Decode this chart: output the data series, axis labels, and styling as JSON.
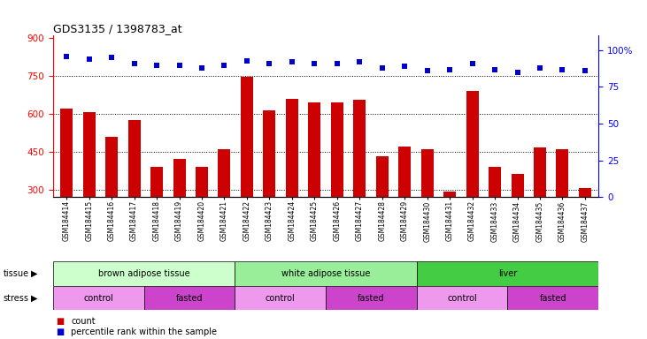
{
  "title": "GDS3135 / 1398783_at",
  "samples": [
    "GSM184414",
    "GSM184415",
    "GSM184416",
    "GSM184417",
    "GSM184418",
    "GSM184419",
    "GSM184420",
    "GSM184421",
    "GSM184422",
    "GSM184423",
    "GSM184424",
    "GSM184425",
    "GSM184426",
    "GSM184427",
    "GSM184428",
    "GSM184429",
    "GSM184430",
    "GSM184431",
    "GSM184432",
    "GSM184433",
    "GSM184434",
    "GSM184435",
    "GSM184436",
    "GSM184437"
  ],
  "counts": [
    620,
    605,
    510,
    575,
    390,
    420,
    390,
    460,
    745,
    615,
    660,
    645,
    645,
    655,
    430,
    470,
    460,
    290,
    690,
    390,
    360,
    465,
    460,
    305
  ],
  "percentile_ranks": [
    96,
    94,
    95,
    91,
    90,
    90,
    88,
    90,
    93,
    91,
    92,
    91,
    91,
    92,
    88,
    89,
    86,
    87,
    91,
    87,
    85,
    88,
    87,
    86
  ],
  "bar_color": "#cc0000",
  "dot_color": "#0000cc",
  "ylim_left": [
    270,
    910
  ],
  "yticks_left": [
    300,
    450,
    600,
    750,
    900
  ],
  "ylim_right": [
    0,
    110
  ],
  "yticks_right": [
    0,
    25,
    50,
    75,
    100
  ],
  "tissue_groups": [
    {
      "label": "brown adipose tissue",
      "start": 0,
      "end": 8,
      "color": "#ccffcc"
    },
    {
      "label": "white adipose tissue",
      "start": 8,
      "end": 16,
      "color": "#99ee99"
    },
    {
      "label": "liver",
      "start": 16,
      "end": 24,
      "color": "#44cc44"
    }
  ],
  "stress_groups": [
    {
      "label": "control",
      "start": 0,
      "end": 4,
      "color": "#ee99ee"
    },
    {
      "label": "fasted",
      "start": 4,
      "end": 8,
      "color": "#cc44cc"
    },
    {
      "label": "control",
      "start": 8,
      "end": 12,
      "color": "#ee99ee"
    },
    {
      "label": "fasted",
      "start": 12,
      "end": 16,
      "color": "#cc44cc"
    },
    {
      "label": "control",
      "start": 16,
      "end": 20,
      "color": "#ee99ee"
    },
    {
      "label": "fasted",
      "start": 20,
      "end": 24,
      "color": "#cc44cc"
    }
  ],
  "grid_values": [
    300,
    450,
    600,
    750
  ],
  "legend_count_label": "count",
  "legend_pct_label": "percentile rank within the sample"
}
